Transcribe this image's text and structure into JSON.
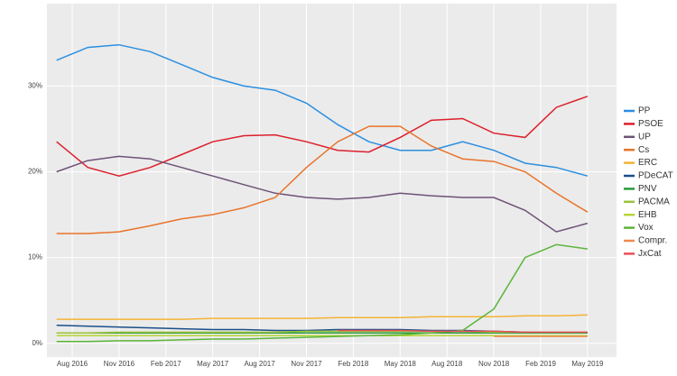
{
  "chart_data": {
    "type": "line",
    "x": [
      "2016-07",
      "2016-09",
      "2016-11",
      "2017-01",
      "2017-03",
      "2017-05",
      "2017-07",
      "2017-09",
      "2017-11",
      "2018-01",
      "2018-03",
      "2018-05",
      "2018-07",
      "2018-09",
      "2018-11",
      "2019-01",
      "2019-03",
      "2019-05"
    ],
    "xlim": [
      "2016-06",
      "2019-06"
    ],
    "xticks": [
      {
        "value": "2016-08",
        "label": "Aug 2016"
      },
      {
        "value": "2016-11",
        "label": "Nov 2016"
      },
      {
        "value": "2017-02",
        "label": "Feb 2017"
      },
      {
        "value": "2017-05",
        "label": "May 2017"
      },
      {
        "value": "2017-08",
        "label": "Aug 2017"
      },
      {
        "value": "2017-11",
        "label": "Nov 2017"
      },
      {
        "value": "2018-02",
        "label": "Feb 2018"
      },
      {
        "value": "2018-05",
        "label": "May 2018"
      },
      {
        "value": "2018-08",
        "label": "Aug 2018"
      },
      {
        "value": "2018-11",
        "label": "Nov 2018"
      },
      {
        "value": "2019-02",
        "label": "Feb 2019"
      },
      {
        "value": "2019-05",
        "label": "May 2019"
      }
    ],
    "ylim": [
      -1.5,
      39.5
    ],
    "yticks": [
      {
        "value": 0,
        "label": "0%"
      },
      {
        "value": 10,
        "label": "10%"
      },
      {
        "value": 20,
        "label": "20%"
      },
      {
        "value": 30,
        "label": "30%"
      }
    ],
    "grid": true,
    "legend": "right",
    "series": [
      {
        "name": "PP",
        "color": "#2b8fe0",
        "values": [
          33,
          34.5,
          34.8,
          34,
          32.5,
          31,
          30,
          29.5,
          28,
          25.5,
          23.5,
          22.5,
          22.5,
          23.5,
          22.5,
          21,
          20.5,
          19.5
        ]
      },
      {
        "name": "PSOE",
        "color": "#dc1f2c",
        "values": [
          23.5,
          20.5,
          19.5,
          20.5,
          22,
          23.5,
          24.2,
          24.3,
          23.5,
          22.5,
          22.3,
          24,
          26,
          26.2,
          24.5,
          24,
          27.5,
          28.8
        ]
      },
      {
        "name": "UP",
        "color": "#6e5277",
        "values": [
          20,
          21.3,
          21.8,
          21.5,
          20.5,
          19.5,
          18.5,
          17.5,
          17,
          16.8,
          17,
          17.5,
          17.2,
          17,
          17,
          15.5,
          13,
          14
        ]
      },
      {
        "name": "Cs",
        "color": "#e8742a",
        "values": [
          12.8,
          12.8,
          13,
          13.7,
          14.5,
          15,
          15.8,
          17,
          20.5,
          23.5,
          25.3,
          25.3,
          23,
          21.5,
          21.2,
          20,
          17.5,
          15.3
        ]
      },
      {
        "name": "ERC",
        "color": "#f5b335",
        "values": [
          2.8,
          2.8,
          2.8,
          2.8,
          2.8,
          2.9,
          2.9,
          2.9,
          2.9,
          3,
          3,
          3,
          3.1,
          3.1,
          3.1,
          3.2,
          3.2,
          3.3
        ]
      },
      {
        "name": "PDeCAT",
        "color": "#1b4f8a",
        "values": [
          2.1,
          2,
          1.9,
          1.8,
          1.7,
          1.6,
          1.6,
          1.5,
          1.5,
          1.6,
          1.6,
          1.6,
          1.5,
          1.5,
          1.4,
          1.3,
          1.2,
          1.2
        ]
      },
      {
        "name": "PNV",
        "color": "#2a9a3a",
        "values": [
          1.2,
          1.2,
          1.2,
          1.2,
          1.2,
          1.2,
          1.2,
          1.2,
          1.2,
          1.2,
          1.2,
          1.2,
          1.2,
          1.2,
          1.2,
          1.2,
          1.2,
          1.2
        ]
      },
      {
        "name": "PACMA",
        "color": "#9cc33a",
        "values": [
          1.2,
          1.2,
          1.3,
          1.3,
          1.3,
          1.3,
          1.3,
          1.3,
          1.4,
          1.4,
          1.4,
          1.4,
          1.4,
          1.4,
          1.3,
          1.3,
          1.3,
          1.3
        ]
      },
      {
        "name": "EHB",
        "color": "#b5d535",
        "values": [
          0.9,
          0.9,
          0.9,
          0.9,
          0.9,
          0.9,
          0.9,
          0.9,
          0.9,
          0.9,
          0.9,
          0.9,
          0.9,
          0.9,
          0.9,
          0.9,
          0.9,
          0.9
        ]
      },
      {
        "name": "Vox",
        "color": "#5db53a",
        "values": [
          0.2,
          0.2,
          0.3,
          0.3,
          0.4,
          0.5,
          0.5,
          0.6,
          0.7,
          0.8,
          0.9,
          1,
          1.2,
          1.5,
          4,
          10,
          11.5,
          11
        ]
      },
      {
        "name": "Compr.",
        "color": "#f08a50",
        "values": [
          null,
          null,
          null,
          null,
          null,
          null,
          null,
          null,
          null,
          null,
          null,
          null,
          null,
          null,
          0.8,
          0.8,
          0.8,
          0.8
        ]
      },
      {
        "name": "JxCat",
        "color": "#e8505a",
        "values": [
          null,
          null,
          null,
          null,
          null,
          null,
          null,
          null,
          null,
          1.5,
          1.5,
          1.5,
          1.4,
          1.4,
          1.4,
          1.3,
          1.3,
          1.3
        ]
      }
    ]
  }
}
